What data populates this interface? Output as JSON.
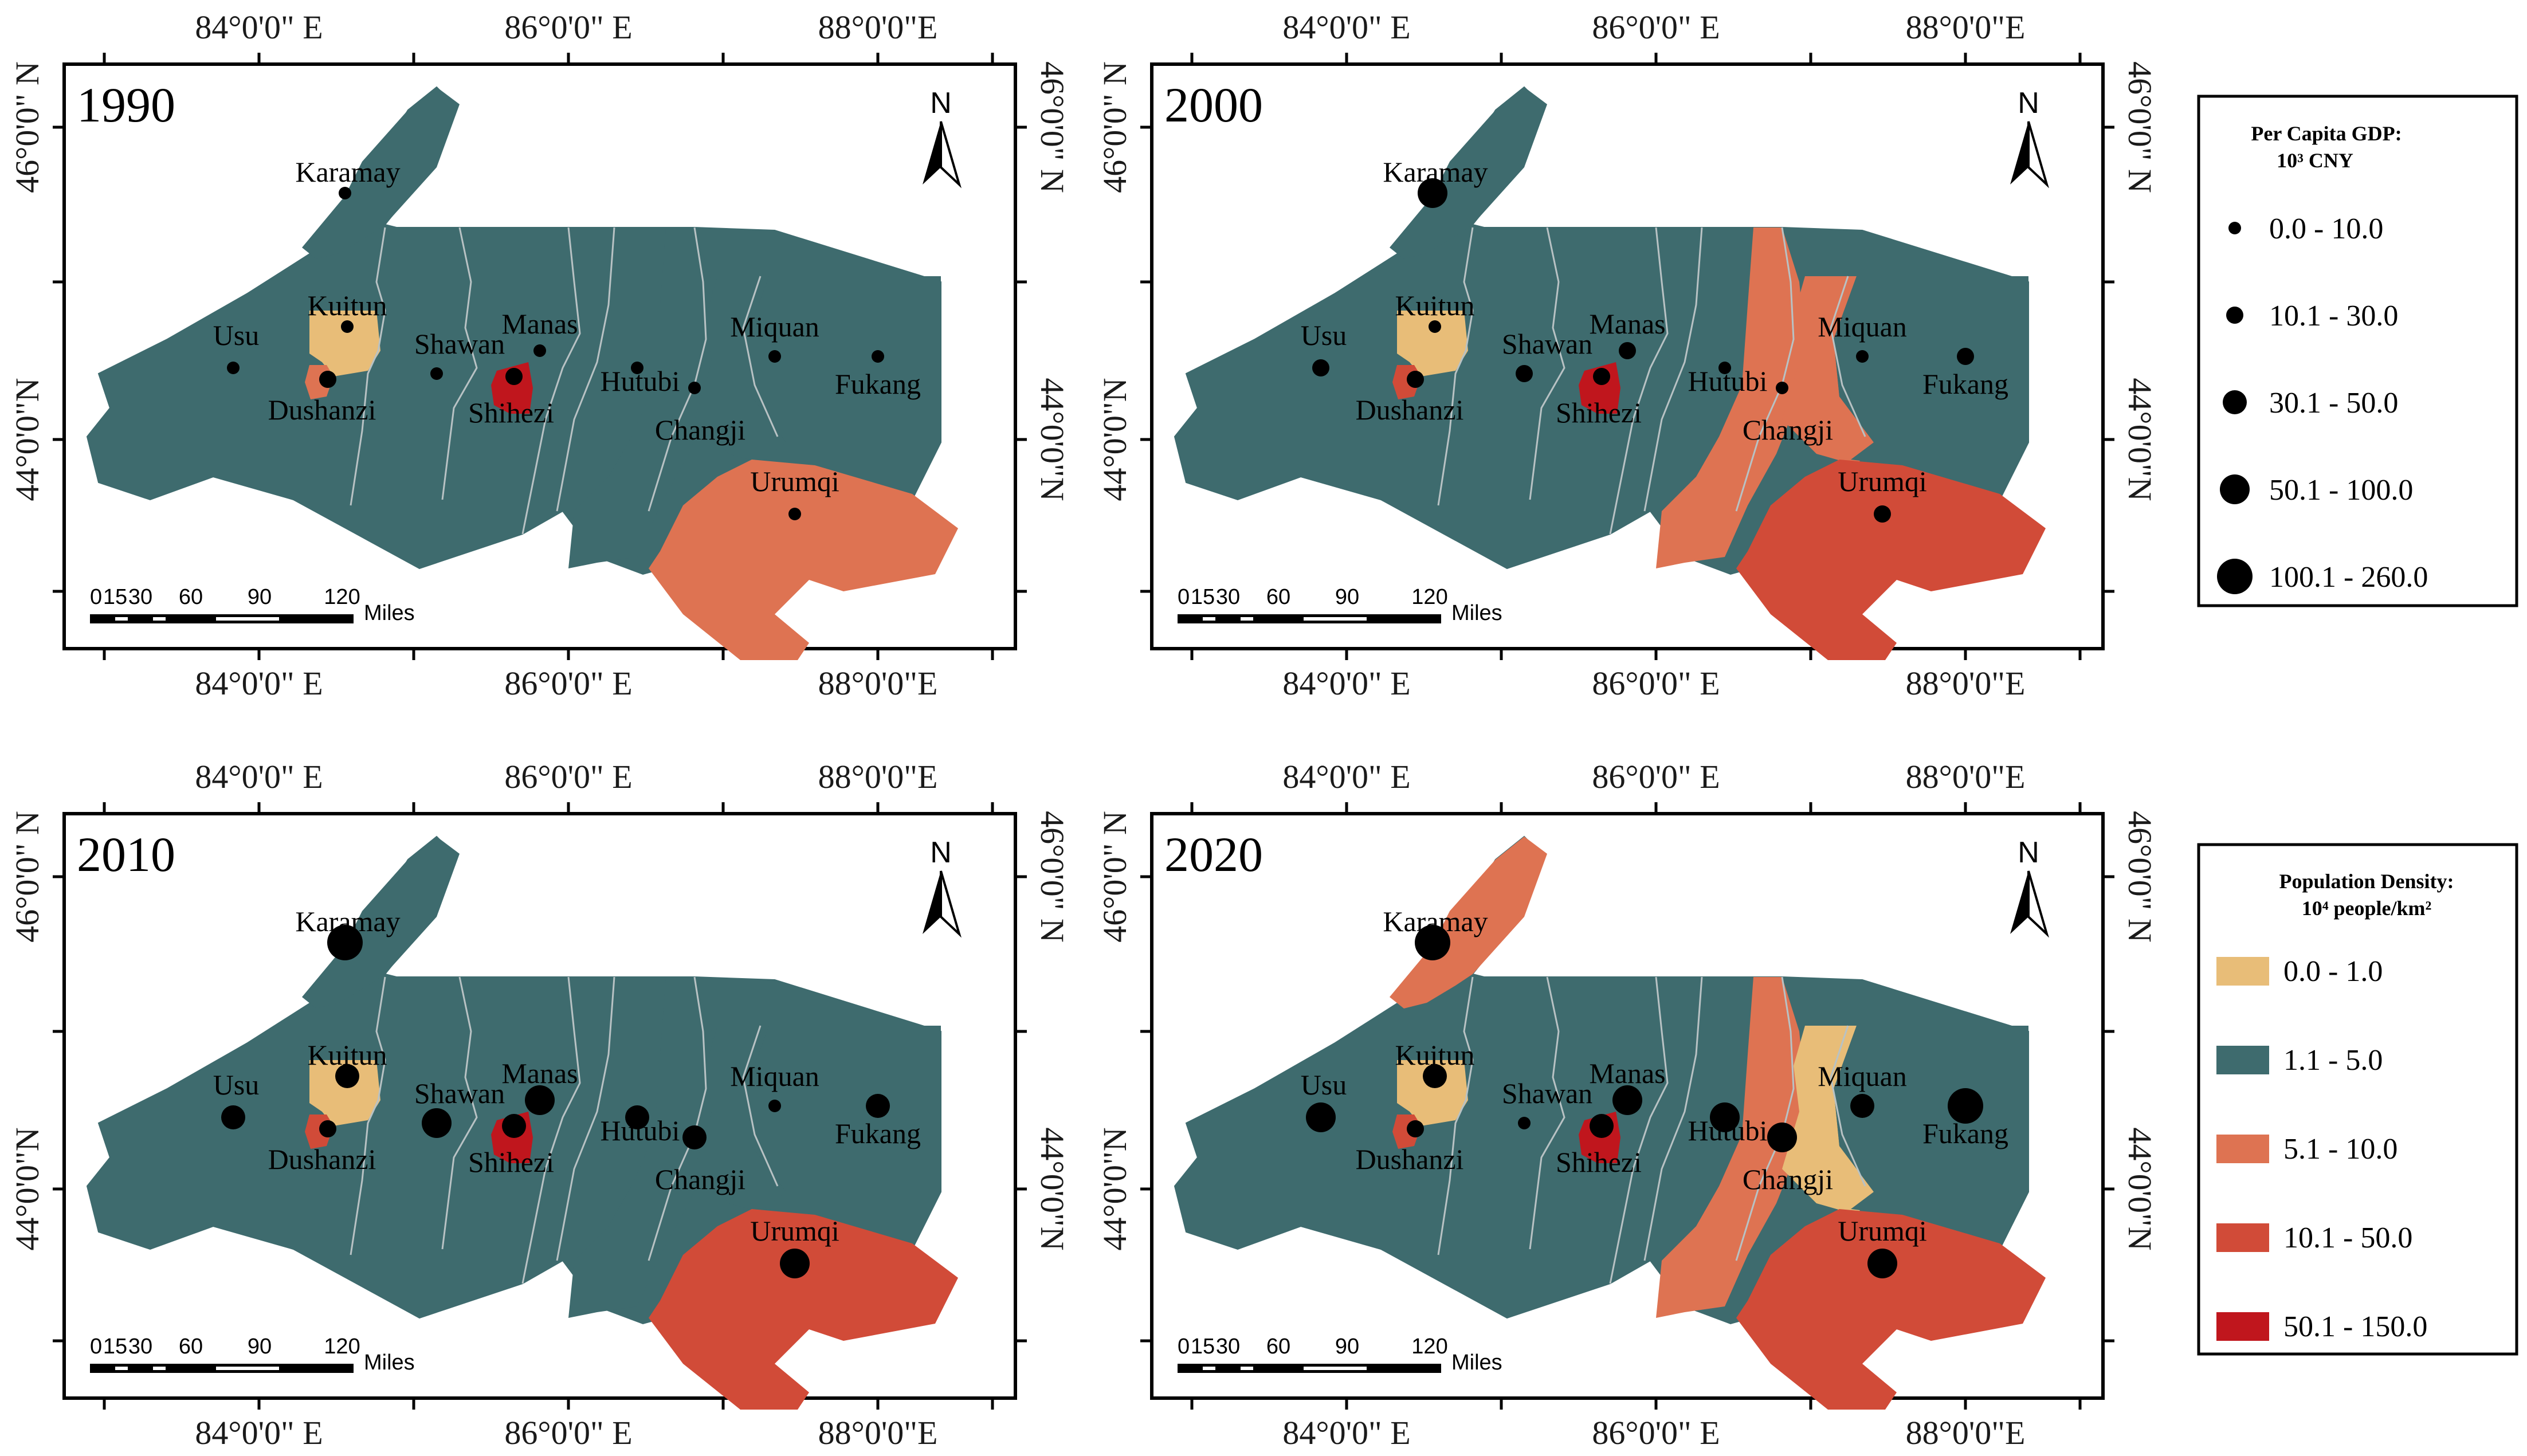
{
  "colors": {
    "c1": "#e8bd78",
    "c2": "#3e6b6e",
    "c3": "#de7352",
    "c4": "#d14b38",
    "c5": "#c0161d",
    "border": "#000000"
  },
  "axes": {
    "lon_labels": [
      "84°0'0\" E",
      "86°0'0\" E",
      "88°0'0\"E"
    ],
    "lat_labels": [
      "46°0'0\" N",
      "44°0'0\"N"
    ]
  },
  "scalebar": {
    "ticks": [
      "0",
      "15",
      "30",
      "60",
      "90",
      "120"
    ],
    "unit": "Miles"
  },
  "north_arrow": "N",
  "gdp_classes": [
    "0.0 - 10.0",
    "10.1 - 30.0",
    "30.1 - 50.0",
    "50.1 - 100.0",
    "100.1 - 260.0"
  ],
  "panels": [
    {
      "year": "1990",
      "fills": {
        "west": "c2",
        "karamay": "c2",
        "kuitun": "c1",
        "dushanzi": "c3",
        "shihezi": "c5",
        "urumqi": "c3",
        "changji_strip": "c2",
        "miquan": "c2",
        "fukang": "c2"
      },
      "cities": [
        {
          "name": "Karamay",
          "gdp": 1
        },
        {
          "name": "Kuitun",
          "gdp": 1
        },
        {
          "name": "Usu",
          "gdp": 1
        },
        {
          "name": "Shawan",
          "gdp": 1
        },
        {
          "name": "Manas",
          "gdp": 1
        },
        {
          "name": "Shihezi",
          "gdp": 2
        },
        {
          "name": "Dushanzi",
          "gdp": 2
        },
        {
          "name": "Hutubi",
          "gdp": 1
        },
        {
          "name": "Changji",
          "gdp": 1
        },
        {
          "name": "Miquan",
          "gdp": 1
        },
        {
          "name": "Fukang",
          "gdp": 1
        },
        {
          "name": "Urumqi",
          "gdp": 1
        }
      ]
    },
    {
      "year": "2000",
      "fills": {
        "west": "c2",
        "karamay": "c2",
        "kuitun": "c1",
        "dushanzi": "c4",
        "shihezi": "c5",
        "urumqi": "c4",
        "changji_strip": "c3",
        "miquan": "c3",
        "fukang": "c2"
      },
      "cities": [
        {
          "name": "Karamay",
          "gdp": 4
        },
        {
          "name": "Kuitun",
          "gdp": 1
        },
        {
          "name": "Usu",
          "gdp": 2
        },
        {
          "name": "Shawan",
          "gdp": 2
        },
        {
          "name": "Manas",
          "gdp": 2
        },
        {
          "name": "Shihezi",
          "gdp": 2
        },
        {
          "name": "Dushanzi",
          "gdp": 2
        },
        {
          "name": "Hutubi",
          "gdp": 1
        },
        {
          "name": "Changji",
          "gdp": 1
        },
        {
          "name": "Miquan",
          "gdp": 1
        },
        {
          "name": "Fukang",
          "gdp": 2
        },
        {
          "name": "Urumqi",
          "gdp": 2
        }
      ]
    },
    {
      "year": "2010",
      "fills": {
        "west": "c2",
        "karamay": "c2",
        "kuitun": "c1",
        "dushanzi": "c4",
        "shihezi": "c5",
        "urumqi": "c4",
        "changji_strip": "c2",
        "miquan": "c2",
        "fukang": "c2"
      },
      "cities": [
        {
          "name": "Karamay",
          "gdp": 5
        },
        {
          "name": "Kuitun",
          "gdp": 3
        },
        {
          "name": "Usu",
          "gdp": 3
        },
        {
          "name": "Shawan",
          "gdp": 4
        },
        {
          "name": "Manas",
          "gdp": 4
        },
        {
          "name": "Shihezi",
          "gdp": 3
        },
        {
          "name": "Dushanzi",
          "gdp": 2
        },
        {
          "name": "Hutubi",
          "gdp": 3
        },
        {
          "name": "Changji",
          "gdp": 3
        },
        {
          "name": "Miquan",
          "gdp": 1
        },
        {
          "name": "Fukang",
          "gdp": 3
        },
        {
          "name": "Urumqi",
          "gdp": 4
        }
      ]
    },
    {
      "year": "2020",
      "fills": {
        "west": "c2",
        "karamay": "c3",
        "kuitun": "c1",
        "dushanzi": "c4",
        "shihezi": "c5",
        "urumqi": "c4",
        "changji_strip": "c3",
        "miquan": "c1",
        "fukang": "c2"
      },
      "cities": [
        {
          "name": "Karamay",
          "gdp": 5
        },
        {
          "name": "Kuitun",
          "gdp": 3
        },
        {
          "name": "Usu",
          "gdp": 4
        },
        {
          "name": "Shawan",
          "gdp": 1
        },
        {
          "name": "Manas",
          "gdp": 4
        },
        {
          "name": "Shihezi",
          "gdp": 3
        },
        {
          "name": "Dushanzi",
          "gdp": 2
        },
        {
          "name": "Hutubi",
          "gdp": 4
        },
        {
          "name": "Changji",
          "gdp": 4
        },
        {
          "name": "Miquan",
          "gdp": 3
        },
        {
          "name": "Fukang",
          "gdp": 5
        },
        {
          "name": "Urumqi",
          "gdp": 4
        }
      ]
    }
  ],
  "legend_gdp": {
    "title_line1": "Per Capita GDP:",
    "title_line2": "10³ CNY",
    "items": [
      "0.0 - 10.0",
      "10.1 - 30.0",
      "30.1 - 50.0",
      "50.1 - 100.0",
      "100.1 - 260.0"
    ]
  },
  "legend_pop": {
    "title_line1": "Population Density:",
    "title_line2": "10⁴ people/km²",
    "items": [
      {
        "label": "0.0 - 1.0",
        "color": "c1"
      },
      {
        "label": "1.1 - 5.0",
        "color": "c2"
      },
      {
        "label": "5.1 - 10.0",
        "color": "c3"
      },
      {
        "label": "10.1 - 50.0",
        "color": "c4"
      },
      {
        "label": "50.1 - 150.0",
        "color": "c5"
      }
    ]
  }
}
